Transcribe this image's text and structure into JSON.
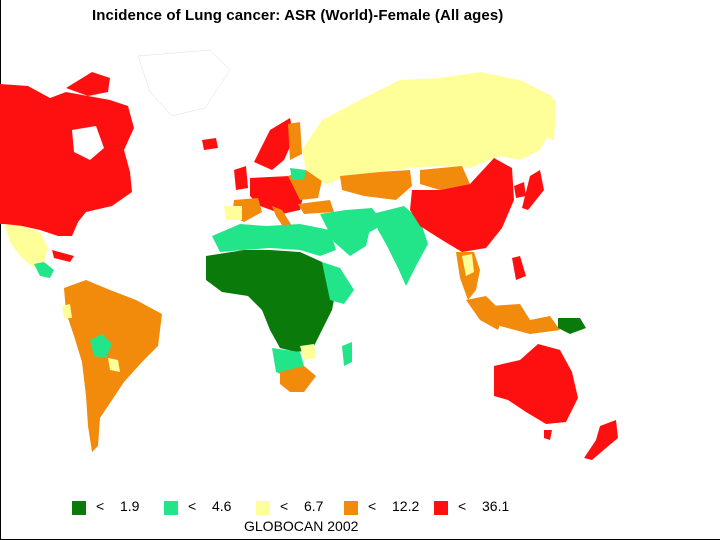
{
  "title": "Incidence of Lung cancer: ASR (World)-Female (All ages)",
  "source": "GLOBOCAN 2002",
  "legend": [
    {
      "symbol": "<",
      "value": "1.9",
      "color": "#0a7a0a"
    },
    {
      "symbol": "<",
      "value": "4.6",
      "color": "#22e58a"
    },
    {
      "symbol": "<",
      "value": "6.7",
      "color": "#ffff99"
    },
    {
      "symbol": "<",
      "value": "12.2",
      "color": "#f28a0c"
    },
    {
      "symbol": "<",
      "value": "36.1",
      "color": "#ff1010"
    }
  ]
}
